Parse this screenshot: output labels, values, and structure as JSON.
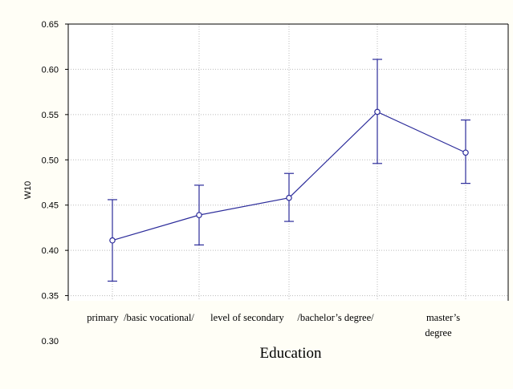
{
  "chart_data": {
    "type": "line",
    "categories": [
      "primary",
      "/basic vocational/",
      "level of secondary",
      "/bachelor's degree/",
      "master's degree"
    ],
    "category_labels": [
      "primary",
      "/basic vocational/",
      "level of secondary",
      "/bachelor’s degree/",
      "master’s"
    ],
    "category_label_extra": "degree",
    "series": [
      {
        "values": [
          0.411,
          0.439,
          0.458,
          0.553,
          0.508
        ],
        "ci_low": [
          0.366,
          0.406,
          0.432,
          0.496,
          0.474
        ],
        "ci_high": [
          0.456,
          0.472,
          0.485,
          0.611,
          0.544
        ]
      }
    ],
    "title": "",
    "xlabel": "Education",
    "ylabel": "W10",
    "ylim": [
      0.3,
      0.65
    ],
    "yticks": [
      "0.30",
      "0.35",
      "0.40",
      "0.45",
      "0.50",
      "0.55",
      "0.60",
      "0.65"
    ],
    "grid": true,
    "colors": {
      "line": "#2b2b9a",
      "errorbar": "#2b2b9a",
      "marker_fill": "#ffffff",
      "grid": "#bbbbbb",
      "plot_background": "#ffffff",
      "figure_background": "#fffef6"
    }
  }
}
